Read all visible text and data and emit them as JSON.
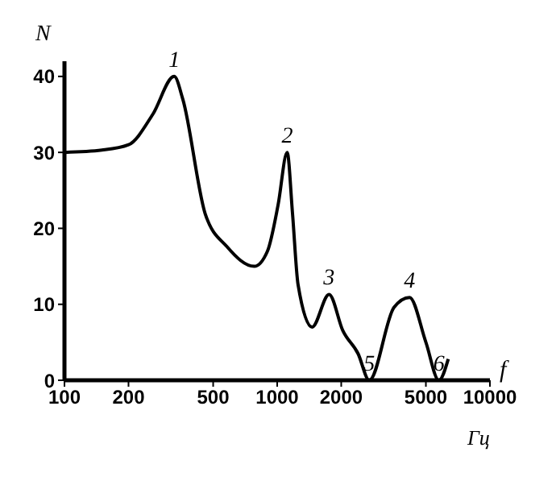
{
  "chart_data": {
    "type": "line",
    "ylabel": "N",
    "xlabel": "f",
    "log": "x",
    "xlim": [
      100,
      10000
    ],
    "xticks": [
      100,
      200,
      500,
      1000,
      2000,
      5000,
      10000
    ],
    "ylim": [
      0,
      42
    ],
    "yticks": [
      0,
      10,
      20,
      30,
      40
    ],
    "x": [
      100,
      150,
      200,
      260,
      328,
      360,
      459,
      580,
      780,
      900,
      1010,
      1114,
      1180,
      1253,
      1459,
      1753,
      2037,
      2400,
      2709,
      3541,
      4190,
      5000,
      5754,
      6370
    ],
    "series": [
      {
        "color": "#000000",
        "values": [
          30,
          30.3,
          31,
          35,
          40,
          37,
          21.9,
          17.6,
          15,
          17,
          23.1,
          30,
          22,
          12.6,
          7,
          11.3,
          6.5,
          3.5,
          0,
          9.6,
          10.9,
          5,
          0,
          2.8
        ]
      }
    ],
    "annotations": [
      {
        "text": "1",
        "x": 328,
        "y": 40
      },
      {
        "text": "2",
        "x": 1114,
        "y": 30
      },
      {
        "text": "3",
        "x": 1753,
        "y": 11.3
      },
      {
        "text": "4",
        "x": 4190,
        "y": 10.9
      },
      {
        "text": "5",
        "x": 2709,
        "y": 0
      },
      {
        "text": "6",
        "x": 5754,
        "y": 0
      },
      "Гц"
    ]
  }
}
